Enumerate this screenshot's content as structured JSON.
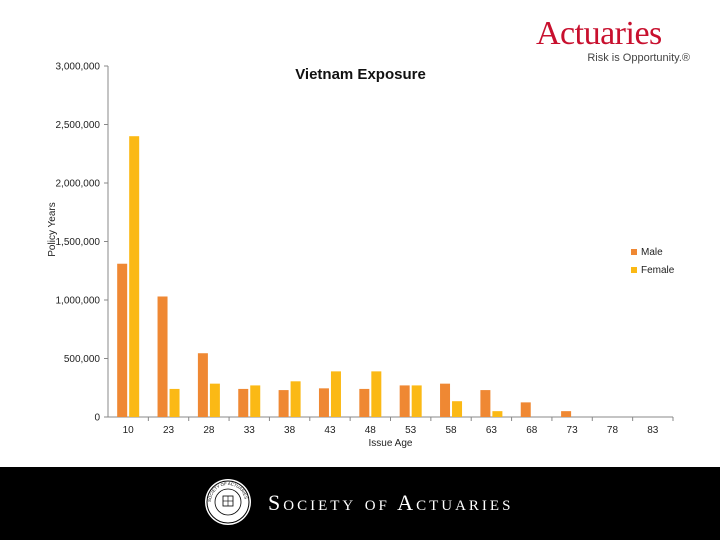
{
  "brand": {
    "name": "Actuaries",
    "tagline": "Risk is Opportunity.®"
  },
  "footer": {
    "org_name": "Society of Actuaries",
    "seal_text": "SOCIETY OF ACTUARIES"
  },
  "colors": {
    "male": "#ef8833",
    "female": "#fbb915",
    "brand_red": "#c8102e"
  },
  "chart_data": {
    "type": "bar",
    "title": "Vietnam Exposure",
    "xlabel": "Issue Age",
    "ylabel": "Policy Years",
    "categories": [
      "10",
      "23",
      "28",
      "33",
      "38",
      "43",
      "48",
      "53",
      "58",
      "63",
      "68",
      "73",
      "78",
      "83"
    ],
    "series": [
      {
        "name": "Male",
        "color": "#ef8833",
        "values": [
          1310000,
          1030000,
          545000,
          240000,
          230000,
          245000,
          240000,
          270000,
          285000,
          230000,
          125000,
          50000,
          0,
          0
        ]
      },
      {
        "name": "Female",
        "color": "#fbb915",
        "values": [
          2400000,
          240000,
          285000,
          270000,
          305000,
          390000,
          390000,
          270000,
          135000,
          50000,
          0,
          0,
          0,
          0
        ]
      }
    ],
    "ylim": [
      0,
      3000000
    ],
    "yticks": [
      0,
      500000,
      1000000,
      1500000,
      2000000,
      2500000,
      3000000
    ],
    "ytick_labels": [
      "0",
      "500,000",
      "1,000,000",
      "1,500,000",
      "2,000,000",
      "2,500,000",
      "3,000,000"
    ],
    "legend_position": "right",
    "grid": false
  }
}
